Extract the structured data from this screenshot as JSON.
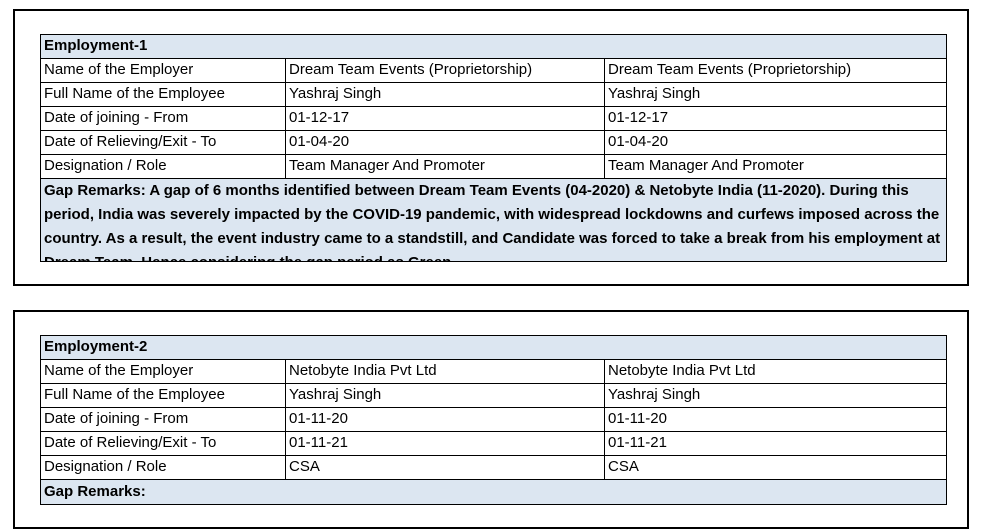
{
  "employments": [
    {
      "title": "Employment-1",
      "rows": [
        [
          "Name of the Employer",
          "Dream Team Events (Proprietorship)",
          "Dream Team Events (Proprietorship)"
        ],
        [
          "Full Name of the Employee",
          "Yashraj Singh",
          "Yashraj Singh"
        ],
        [
          "Date of joining - From",
          "01-12-17",
          "01-12-17"
        ],
        [
          "Date of Relieving/Exit - To",
          "01-04-20",
          "01-04-20"
        ],
        [
          "Designation / Role",
          "Team Manager And Promoter",
          "Team Manager And Promoter"
        ]
      ],
      "gap_remarks": "Gap Remarks: A gap of 6 months identified between Dream Team Events (04-2020) & Netobyte India (11-2020). During this period, India was severely impacted by the COVID-19 pandemic, with widespread lockdowns and curfews imposed across the country. As a result, the event industry came to a standstill, and Candidate was forced to take a break from his employment at Dream Team. Hence considering the gap period as Green."
    },
    {
      "title": "Employment-2",
      "rows": [
        [
          "Name of the Employer",
          "Netobyte India Pvt Ltd",
          "Netobyte India Pvt Ltd"
        ],
        [
          "Full Name of the Employee",
          "Yashraj Singh",
          "Yashraj Singh"
        ],
        [
          "Date of joining - From",
          "01-11-20",
          "01-11-20"
        ],
        [
          "Date of Relieving/Exit - To",
          "01-11-21",
          "01-11-21"
        ],
        [
          "Designation / Role",
          "CSA",
          "CSA"
        ]
      ],
      "gap_remarks": "Gap Remarks:"
    }
  ]
}
